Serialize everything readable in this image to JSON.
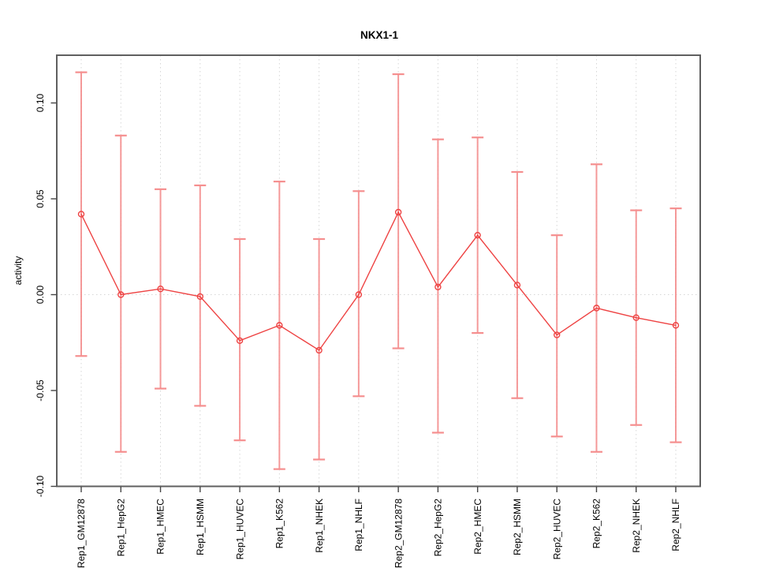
{
  "figure": {
    "background": "#ffffff"
  },
  "chart_data": {
    "type": "line",
    "title": "NKX1-1",
    "xlabel": "",
    "ylabel": "activity",
    "legend": "none",
    "grid": "dotted vertical gridline at each category; dotted horizontal line at y=0",
    "marker": "open-circle",
    "error_bars": true,
    "ylim": [
      -0.0998,
      0.1251
    ],
    "yticks": [
      0.1,
      0.05,
      0.0,
      -0.05,
      -0.1
    ],
    "ytick_labels": [
      "0.10",
      "0.05",
      "0.00",
      "-0.05",
      "-0.10"
    ],
    "categories": [
      "Rep1_GM12878",
      "Rep1_HepG2",
      "Rep1_HMEC",
      "Rep1_HSMM",
      "Rep1_HUVEC",
      "Rep1_K562",
      "Rep1_NHEK",
      "Rep1_NHLF",
      "Rep2_GM12878",
      "Rep2_HepG2",
      "Rep2_HMEC",
      "Rep2_HSMM",
      "Rep2_HUVEC",
      "Rep2_K562",
      "Rep2_NHEK",
      "Rep2_NHLF"
    ],
    "series": [
      {
        "name": "activity",
        "values": [
          0.042,
          0.0,
          0.003,
          -0.001,
          -0.024,
          -0.016,
          -0.029,
          0.0,
          0.043,
          0.004,
          0.031,
          0.005,
          -0.021,
          -0.007,
          -0.012,
          -0.016
        ],
        "upper": [
          0.116,
          0.083,
          0.055,
          0.057,
          0.029,
          0.059,
          0.029,
          0.054,
          0.115,
          0.081,
          0.082,
          0.064,
          0.031,
          0.068,
          0.044,
          0.045
        ],
        "lower": [
          -0.032,
          -0.082,
          -0.049,
          -0.058,
          -0.076,
          -0.091,
          -0.086,
          -0.053,
          -0.028,
          -0.072,
          -0.02,
          -0.054,
          -0.074,
          -0.082,
          -0.068,
          -0.077
        ]
      }
    ],
    "colors": {
      "line": "#ee4343",
      "marker": "#ee4343",
      "error_bar": "#f58f8f",
      "gridline": "#d6d6d6",
      "frame": "#5f5f5f",
      "tick": "#444444",
      "text": "#000000"
    }
  }
}
